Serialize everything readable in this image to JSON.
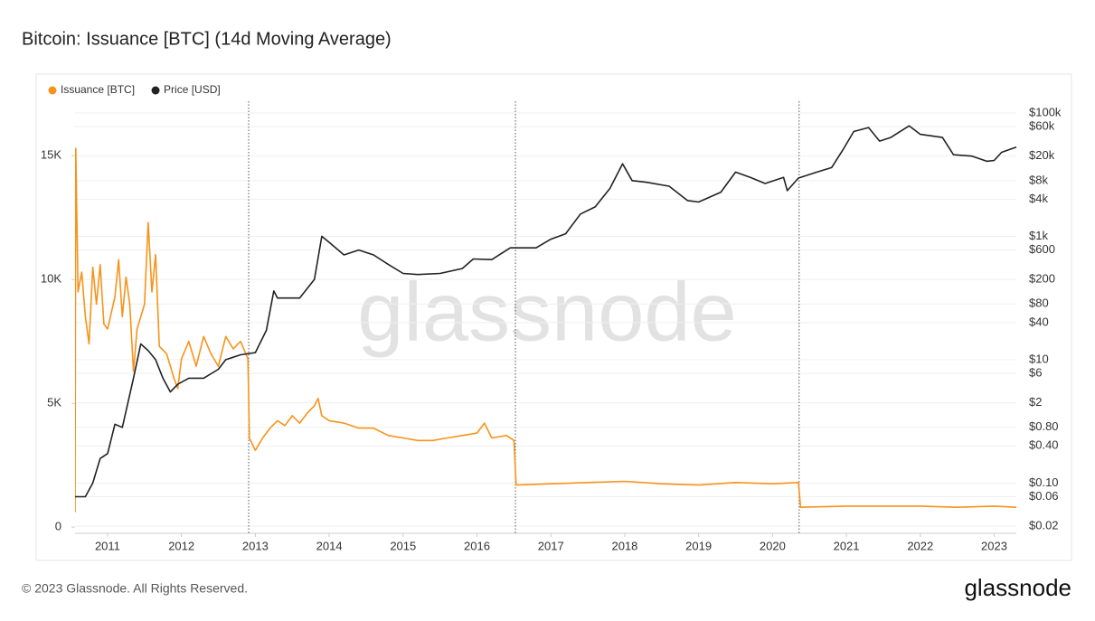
{
  "chart_data": {
    "type": "line",
    "title": "Bitcoin: Issuance [BTC] (14d Moving Average)",
    "watermark": "glassnode",
    "footer": "© 2023 Glassnode. All Rights Reserved.",
    "logo": "glassnode",
    "legend": "top-left",
    "grid": true,
    "xlim": [
      2010.56,
      2023.3
    ],
    "xticks": [
      2011,
      2012,
      2013,
      2014,
      2015,
      2016,
      2017,
      2018,
      2019,
      2020,
      2021,
      2022,
      2023
    ],
    "markers": [
      2012.91,
      2016.52,
      2020.36
    ],
    "ylim": [
      -250,
      17200
    ],
    "yticks": [
      0,
      {
        "value": 5000,
        "label": "5K"
      },
      {
        "value": 10000,
        "label": "10K"
      },
      {
        "value": 15000,
        "label": "15K"
      }
    ],
    "y2scale": "log",
    "y2lim": [
      0.0153,
      155000
    ],
    "y2ticks": [
      {
        "value": 100000,
        "label": "$100k"
      },
      {
        "value": 60000,
        "label": "$60k"
      },
      {
        "value": 20000,
        "label": "$20k"
      },
      {
        "value": 8000,
        "label": "$8k"
      },
      {
        "value": 4000,
        "label": "$4k"
      },
      {
        "value": 1000,
        "label": "$1k"
      },
      {
        "value": 600,
        "label": "$600"
      },
      {
        "value": 200,
        "label": "$200"
      },
      {
        "value": 80,
        "label": "$80"
      },
      {
        "value": 40,
        "label": "$40"
      },
      {
        "value": 10,
        "label": "$10"
      },
      {
        "value": 6,
        "label": "$6"
      },
      {
        "value": 2,
        "label": "$2"
      },
      {
        "value": 0.8,
        "label": "$0.80"
      },
      {
        "value": 0.4,
        "label": "$0.40"
      },
      {
        "value": 0.1,
        "label": "$0.10"
      },
      {
        "value": 0.06,
        "label": "$0.06"
      },
      {
        "value": 0.02,
        "label": "$0.02"
      }
    ],
    "series": [
      {
        "name": "Issuance [BTC]",
        "color": "#f7931a",
        "axis": "y",
        "x": [
          2010.56,
          2010.57,
          2010.6,
          2010.65,
          2010.7,
          2010.75,
          2010.8,
          2010.85,
          2010.9,
          2010.95,
          2011.0,
          2011.1,
          2011.15,
          2011.2,
          2011.25,
          2011.3,
          2011.35,
          2011.4,
          2011.5,
          2011.55,
          2011.6,
          2011.65,
          2011.7,
          2011.8,
          2011.9,
          2011.95,
          2012.0,
          2012.1,
          2012.2,
          2012.3,
          2012.4,
          2012.5,
          2012.6,
          2012.7,
          2012.8,
          2012.9,
          2012.92,
          2013.0,
          2013.1,
          2013.2,
          2013.3,
          2013.4,
          2013.5,
          2013.6,
          2013.7,
          2013.8,
          2013.85,
          2013.9,
          2014.0,
          2014.2,
          2014.4,
          2014.6,
          2014.8,
          2015.0,
          2015.2,
          2015.4,
          2015.6,
          2015.8,
          2016.0,
          2016.1,
          2016.2,
          2016.4,
          2016.5,
          2016.53,
          2017.0,
          2017.5,
          2018.0,
          2018.5,
          2019.0,
          2019.5,
          2020.0,
          2020.35,
          2020.38,
          2021.0,
          2021.5,
          2022.0,
          2022.5,
          2023.0,
          2023.3
        ],
        "values": [
          600,
          15300,
          9500,
          10300,
          8500,
          7400,
          10500,
          9000,
          10600,
          8200,
          8000,
          9300,
          10800,
          8500,
          10100,
          9000,
          6300,
          8000,
          9000,
          12300,
          9500,
          11000,
          7300,
          7000,
          6000,
          5600,
          6800,
          7500,
          6500,
          7700,
          7000,
          6500,
          7700,
          7200,
          7500,
          6800,
          3600,
          3100,
          3600,
          4000,
          4300,
          4100,
          4500,
          4200,
          4600,
          4900,
          5200,
          4500,
          4300,
          4200,
          4000,
          4000,
          3700,
          3600,
          3500,
          3500,
          3600,
          3700,
          3800,
          4200,
          3600,
          3700,
          3500,
          1700,
          1750,
          1800,
          1850,
          1750,
          1700,
          1800,
          1750,
          1800,
          800,
          850,
          850,
          850,
          800,
          850,
          800
        ]
      },
      {
        "name": "Price [USD]",
        "color": "#222222",
        "axis": "y2",
        "x": [
          2010.56,
          2010.7,
          2010.8,
          2010.9,
          2011.0,
          2011.1,
          2011.2,
          2011.35,
          2011.45,
          2011.55,
          2011.65,
          2011.75,
          2011.85,
          2011.95,
          2012.1,
          2012.3,
          2012.5,
          2012.6,
          2012.8,
          2013.0,
          2013.15,
          2013.25,
          2013.3,
          2013.45,
          2013.6,
          2013.8,
          2013.9,
          2014.0,
          2014.2,
          2014.4,
          2014.6,
          2014.8,
          2015.0,
          2015.2,
          2015.5,
          2015.8,
          2015.95,
          2016.2,
          2016.45,
          2016.55,
          2016.8,
          2017.0,
          2017.2,
          2017.4,
          2017.6,
          2017.8,
          2017.97,
          2018.1,
          2018.3,
          2018.6,
          2018.85,
          2019.0,
          2019.3,
          2019.5,
          2019.7,
          2019.9,
          2020.15,
          2020.2,
          2020.35,
          2020.6,
          2020.8,
          2020.95,
          2021.1,
          2021.3,
          2021.45,
          2021.6,
          2021.85,
          2022.0,
          2022.3,
          2022.45,
          2022.7,
          2022.9,
          2023.0,
          2023.1,
          2023.3
        ],
        "values": [
          0.06,
          0.06,
          0.1,
          0.25,
          0.3,
          0.9,
          0.8,
          5,
          18,
          14,
          10,
          5,
          3,
          4,
          5,
          5,
          7,
          10,
          12,
          13,
          30,
          130,
          100,
          100,
          100,
          200,
          1000,
          800,
          500,
          600,
          500,
          350,
          250,
          240,
          250,
          300,
          430,
          420,
          650,
          650,
          650,
          900,
          1100,
          2300,
          3000,
          6000,
          15000,
          8000,
          7500,
          6500,
          3800,
          3600,
          5200,
          11000,
          9000,
          7200,
          9000,
          5500,
          8800,
          11000,
          13000,
          25000,
          50000,
          58000,
          35000,
          40000,
          62000,
          45000,
          40000,
          21000,
          20000,
          16500,
          17000,
          23000,
          28000
        ]
      }
    ]
  }
}
